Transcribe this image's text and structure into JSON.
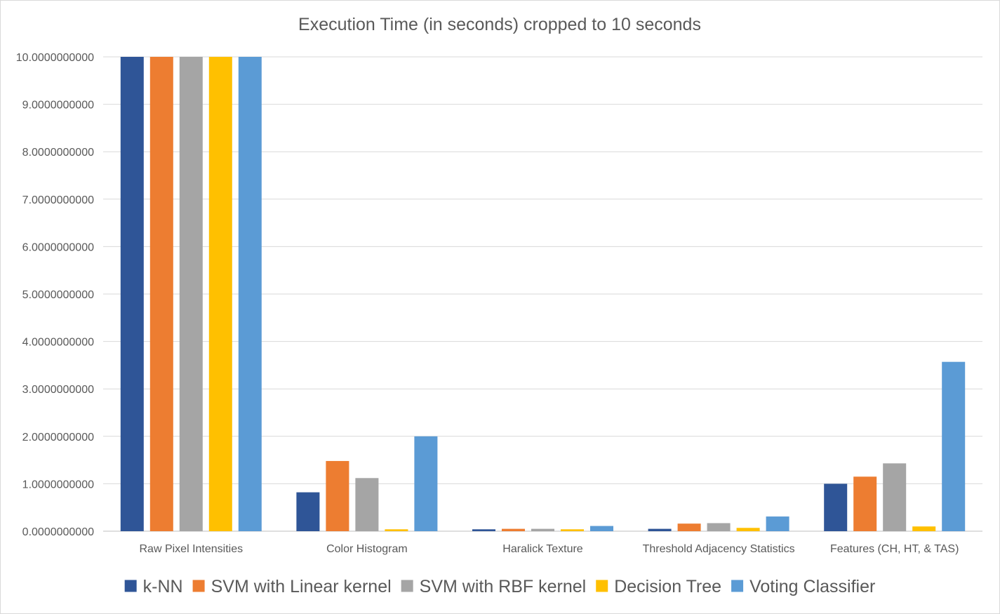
{
  "chart_data": {
    "type": "bar",
    "title": "Execution Time (in seconds) cropped to 10 seconds",
    "xlabel": "",
    "ylabel": "",
    "ylim": [
      0,
      10
    ],
    "yticks": [
      "0.0000000000",
      "1.0000000000",
      "2.0000000000",
      "3.0000000000",
      "4.0000000000",
      "5.0000000000",
      "6.0000000000",
      "7.0000000000",
      "8.0000000000",
      "9.0000000000",
      "10.0000000000"
    ],
    "grid": true,
    "legend_position": "bottom",
    "categories": [
      "Raw Pixel Intensities",
      "Color Histogram",
      "Haralick Texture",
      "Threshold Adjacency Statistics",
      "Features (CH, HT, & TAS)"
    ],
    "series": [
      {
        "name": "k-NN",
        "color": "#2f5597",
        "values": [
          10,
          0.82,
          0.04,
          0.05,
          1.0
        ]
      },
      {
        "name": "SVM with Linear kernel",
        "color": "#ed7d31",
        "values": [
          10,
          1.48,
          0.05,
          0.16,
          1.15
        ]
      },
      {
        "name": "SVM with RBF kernel",
        "color": "#a5a5a5",
        "values": [
          10,
          1.12,
          0.05,
          0.17,
          1.43
        ]
      },
      {
        "name": "Decision Tree",
        "color": "#ffc000",
        "values": [
          10,
          0.04,
          0.04,
          0.07,
          0.1
        ]
      },
      {
        "name": "Voting Classifier",
        "color": "#5b9bd5",
        "values": [
          10,
          2.0,
          0.11,
          0.31,
          3.57
        ]
      }
    ]
  }
}
